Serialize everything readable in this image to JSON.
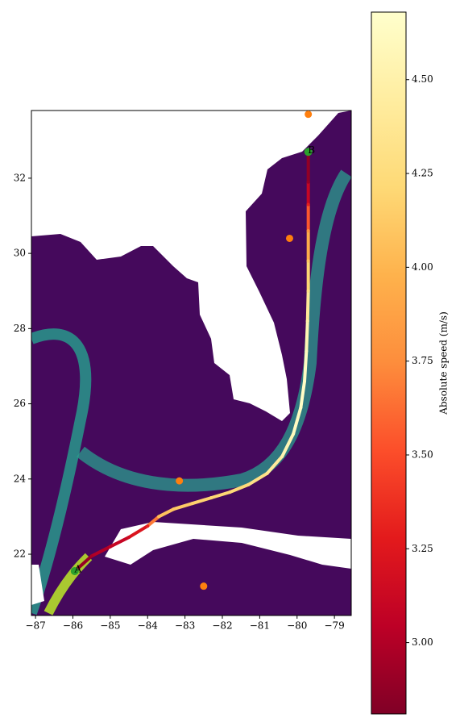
{
  "chart_data": {
    "type": "route",
    "xlim": [
      -87.11,
      -78.55
    ],
    "ylim": [
      20.37,
      33.8
    ],
    "xticks": [
      {
        "value": -87,
        "label": "−87"
      },
      {
        "value": -86,
        "label": "−86"
      },
      {
        "value": -85,
        "label": "−85"
      },
      {
        "value": -84,
        "label": "−84"
      },
      {
        "value": -83,
        "label": "−83"
      },
      {
        "value": -82,
        "label": "−82"
      },
      {
        "value": -81,
        "label": "−81"
      },
      {
        "value": -80,
        "label": "−80"
      },
      {
        "value": -79,
        "label": "−79"
      }
    ],
    "yticks": [
      22,
      24,
      26,
      28,
      30,
      32
    ],
    "route": {
      "x": [
        -85.95,
        -85.5,
        -85.0,
        -84.5,
        -84.0,
        -83.7,
        -83.3,
        -82.8,
        -82.3,
        -81.8,
        -81.3,
        -80.8,
        -80.4,
        -80.1,
        -79.9,
        -79.8,
        -79.75,
        -79.72,
        -79.7,
        -79.7,
        -79.7,
        -79.7,
        -79.7,
        -79.7
      ],
      "y": [
        21.55,
        21.95,
        22.2,
        22.45,
        22.75,
        23.0,
        23.2,
        23.35,
        23.5,
        23.65,
        23.85,
        24.15,
        24.6,
        25.2,
        25.9,
        26.6,
        27.4,
        28.2,
        29.0,
        29.8,
        30.6,
        31.3,
        31.9,
        32.7
      ],
      "speed": [
        2.85,
        2.95,
        3.05,
        3.15,
        3.3,
        4.05,
        4.1,
        4.15,
        4.2,
        4.2,
        4.25,
        4.35,
        4.5,
        4.6,
        4.65,
        4.65,
        4.6,
        4.5,
        4.3,
        4.1,
        3.8,
        3.3,
        2.9,
        2.85
      ]
    },
    "points": {
      "color": "#ff7f0e",
      "x": [
        -79.7,
        -80.2,
        -83.15,
        -82.5
      ],
      "y": [
        33.7,
        30.4,
        23.95,
        21.15
      ]
    },
    "endpoints": {
      "color": "#2ca02c",
      "labels": [
        "A",
        "B"
      ],
      "x": [
        -85.95,
        -79.7
      ],
      "y": [
        21.55,
        32.7
      ]
    },
    "colorbar": {
      "label": "Absolute speed (m/s)",
      "lim": [
        2.81,
        4.68
      ],
      "ticks": [
        {
          "value": 3,
          "label": "3.00"
        },
        {
          "value": 3.25,
          "label": "3.25"
        },
        {
          "value": 3.5,
          "label": "3.50"
        },
        {
          "value": 3.75,
          "label": "3.75"
        },
        {
          "value": 4,
          "label": "4.00"
        },
        {
          "value": 4.25,
          "label": "4.25"
        },
        {
          "value": 4.5,
          "label": "4.50"
        }
      ],
      "colormap": [
        "#800026",
        "#bd0026",
        "#e31a1c",
        "#fc4e2a",
        "#fd8d3c",
        "#feb24c",
        "#fed976",
        "#ffeda0",
        "#ffffcc"
      ]
    }
  }
}
